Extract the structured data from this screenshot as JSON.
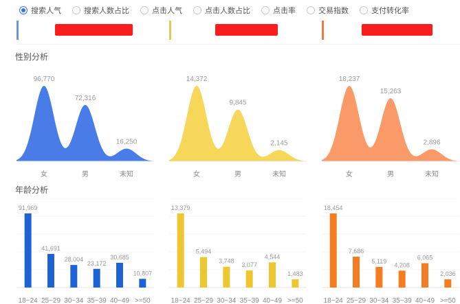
{
  "metrics_bar": {
    "options": [
      {
        "label": "搜索人气",
        "selected": true
      },
      {
        "label": "搜索人数占比",
        "selected": false
      },
      {
        "label": "点击人气",
        "selected": false
      },
      {
        "label": "点击人数占比",
        "selected": false
      },
      {
        "label": "点击率",
        "selected": false
      },
      {
        "label": "交易指数",
        "selected": false
      },
      {
        "label": "支付转化率",
        "selected": false
      }
    ]
  },
  "products": [
    {
      "accent_color": "#6e93dc",
      "title_masked": true
    },
    {
      "accent_color": "#e9c85a",
      "title_masked": true
    },
    {
      "accent_color": "#e87c3e",
      "title_masked": true
    }
  ],
  "colors": {
    "redaction": "#f91d1d",
    "radio_selected": "#3a74d8"
  },
  "sections": {
    "gender_title": "性别分析",
    "age_title": "年龄分析"
  },
  "chart_data": [
    {
      "type": "area",
      "section": "性别分析",
      "column": 1,
      "color": "#4a7ce8",
      "categories": [
        "女",
        "男",
        "未知"
      ],
      "values": [
        96770,
        72316,
        16250
      ],
      "labels": [
        "96,770",
        "72,316",
        "16,250"
      ],
      "title": "",
      "xlabel": "",
      "ylabel": "",
      "grid": false
    },
    {
      "type": "area",
      "section": "性别分析",
      "column": 2,
      "color": "#f6d75a",
      "categories": [
        "女",
        "男",
        "未知"
      ],
      "values": [
        14372,
        9845,
        2145
      ],
      "labels": [
        "14,372",
        "9,845",
        "2,145"
      ],
      "title": "",
      "xlabel": "",
      "ylabel": "",
      "grid": false
    },
    {
      "type": "area",
      "section": "性别分析",
      "column": 3,
      "color": "#f99a68",
      "categories": [
        "女",
        "男",
        "未知"
      ],
      "values": [
        18237,
        15263,
        2896
      ],
      "labels": [
        "18,237",
        "15,263",
        "2,896"
      ],
      "title": "",
      "xlabel": "",
      "ylabel": "",
      "grid": false
    },
    {
      "type": "bar",
      "section": "年龄分析",
      "column": 1,
      "color": "#1e63d6",
      "categories": [
        "18~24",
        "25~29",
        "30~34",
        "35~39",
        "40~49",
        ">=50"
      ],
      "values": [
        91969,
        41691,
        28004,
        23172,
        30685,
        10807
      ],
      "labels": [
        "91,969",
        "41,691",
        "28,004",
        "23,172",
        "30,685",
        "10,807"
      ],
      "title": "",
      "xlabel": "",
      "ylabel": "",
      "grid": true
    },
    {
      "type": "bar",
      "section": "年龄分析",
      "column": 2,
      "color": "#eec62e",
      "categories": [
        "18~24",
        "25~29",
        "30~34",
        "35~39",
        "40~49",
        ">=50"
      ],
      "values": [
        13379,
        5494,
        3748,
        3077,
        4544,
        1483
      ],
      "labels": [
        "13,379",
        "5,494",
        "3,748",
        "3,077",
        "4,544",
        "1,483"
      ],
      "title": "",
      "xlabel": "",
      "ylabel": "",
      "grid": true
    },
    {
      "type": "bar",
      "section": "年龄分析",
      "column": 3,
      "color": "#f47c21",
      "categories": [
        "18~24",
        "25~29",
        "30~34",
        "35~39",
        "40~49",
        ">=50"
      ],
      "values": [
        18454,
        7686,
        5119,
        4208,
        6065,
        2036
      ],
      "labels": [
        "18,454",
        "7,686",
        "5,119",
        "4,208",
        "6,065",
        "2,036"
      ],
      "title": "",
      "xlabel": "",
      "ylabel": "",
      "grid": true
    }
  ]
}
